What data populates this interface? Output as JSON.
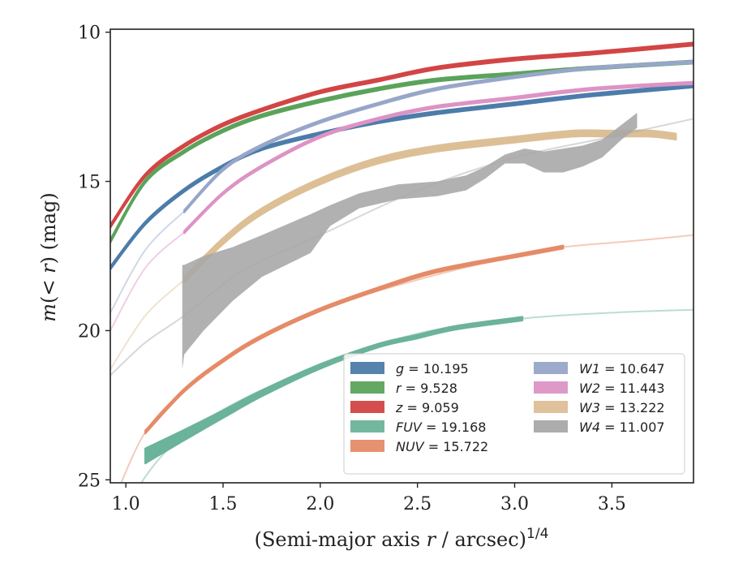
{
  "chart_data": {
    "type": "line",
    "xlabel": "(Semi-major axis r / arcsec)",
    "xlabel_exponent": "1/4",
    "ylabel": "m(< r) (mag)",
    "xlim": [
      0.92,
      3.92
    ],
    "ylim": [
      25.1,
      9.9
    ],
    "y_inverted": true,
    "x_ticks": [
      "1.0",
      "1.5",
      "2.0",
      "2.5",
      "3.0",
      "3.5"
    ],
    "y_ticks": [
      "10",
      "15",
      "20",
      "25"
    ],
    "legend_position": "lower-right",
    "series": [
      {
        "name": "g = 10.195",
        "color": "#4C7CAA",
        "width": 0.1,
        "x": [
          0.92,
          1.1,
          1.3,
          1.5,
          1.7,
          2.0,
          2.3,
          2.6,
          3.0,
          3.4,
          3.92
        ],
        "y": [
          17.9,
          16.4,
          15.3,
          14.5,
          13.9,
          13.4,
          13.0,
          12.7,
          12.4,
          12.1,
          11.8
        ]
      },
      {
        "name": "r = 9.528",
        "color": "#5BA35B",
        "width": 0.1,
        "x": [
          0.92,
          1.1,
          1.3,
          1.5,
          1.7,
          2.0,
          2.3,
          2.6,
          3.0,
          3.4,
          3.92
        ],
        "y": [
          17.0,
          15.0,
          14.0,
          13.3,
          12.8,
          12.3,
          11.9,
          11.6,
          11.4,
          11.2,
          11.0
        ]
      },
      {
        "name": "z = 9.059",
        "color": "#D34545",
        "width": 0.1,
        "x": [
          0.92,
          1.1,
          1.3,
          1.5,
          1.7,
          2.0,
          2.3,
          2.6,
          3.0,
          3.4,
          3.92
        ],
        "y": [
          16.5,
          14.8,
          13.8,
          13.1,
          12.6,
          12.0,
          11.6,
          11.2,
          10.9,
          10.7,
          10.4
        ]
      },
      {
        "name": "FUV = 19.168",
        "color": "#6BB39A",
        "width": 0.2,
        "x": [
          1.1,
          1.3,
          1.5,
          1.7,
          2.0,
          2.3,
          2.5,
          2.7,
          3.04
        ],
        "y": [
          24.2,
          23.5,
          22.8,
          22.1,
          21.2,
          20.5,
          20.2,
          19.9,
          19.6
        ],
        "widths": [
          0.5,
          0.35,
          0.25,
          0.2,
          0.15,
          0.12,
          0.12,
          0.12,
          0.12
        ],
        "faint_x": [
          0.95,
          1.1,
          1.3,
          1.6,
          2.0,
          2.5,
          3.04,
          3.5,
          3.92
        ],
        "faint_y": [
          26.8,
          24.9,
          23.5,
          22.3,
          21.2,
          20.1,
          19.6,
          19.4,
          19.3
        ]
      },
      {
        "name": "NUV = 15.722",
        "color": "#E58B68",
        "width": 0.1,
        "x": [
          1.1,
          1.3,
          1.5,
          1.7,
          2.0,
          2.3,
          2.6,
          3.0,
          3.25
        ],
        "y": [
          23.4,
          22.0,
          21.0,
          20.2,
          19.3,
          18.6,
          18.0,
          17.5,
          17.2
        ],
        "faint_x": [
          0.95,
          1.1,
          1.3,
          1.6,
          2.0,
          2.5,
          3.0,
          3.25,
          3.6,
          3.92
        ],
        "faint_y": [
          25.5,
          23.4,
          22.0,
          20.6,
          19.3,
          18.3,
          17.5,
          17.2,
          17.0,
          16.8
        ]
      },
      {
        "name": "W1 = 10.647",
        "color": "#97A6C9",
        "width": 0.08,
        "x": [
          1.3,
          1.5,
          1.7,
          2.0,
          2.3,
          2.6,
          3.0,
          3.4,
          3.92
        ],
        "y": [
          16.0,
          14.6,
          13.8,
          13.0,
          12.4,
          11.9,
          11.5,
          11.2,
          11.0
        ],
        "faint_x": [
          0.92,
          1.1,
          1.3
        ],
        "faint_y": [
          19.4,
          17.3,
          16.0
        ]
      },
      {
        "name": "W2 = 11.443",
        "color": "#DD93C5",
        "width": 0.08,
        "x": [
          1.3,
          1.5,
          1.7,
          2.0,
          2.3,
          2.6,
          3.0,
          3.4,
          3.92
        ],
        "y": [
          16.7,
          15.4,
          14.5,
          13.5,
          12.9,
          12.5,
          12.2,
          11.9,
          11.7
        ],
        "faint_x": [
          0.92,
          1.1,
          1.3
        ],
        "faint_y": [
          20.0,
          17.9,
          16.7
        ]
      },
      {
        "name": "W3 = 13.222",
        "color": "#DDBF96",
        "width": 0.2,
        "x": [
          1.3,
          1.5,
          1.7,
          2.0,
          2.3,
          2.6,
          3.0,
          3.3,
          3.5,
          3.7,
          3.83
        ],
        "y": [
          18.3,
          17.0,
          16.0,
          15.0,
          14.3,
          13.9,
          13.6,
          13.4,
          13.4,
          13.4,
          13.5
        ],
        "faint_x": [
          0.92,
          1.1,
          1.3
        ],
        "faint_y": [
          21.3,
          19.5,
          18.3
        ]
      },
      {
        "name": "W4 = 11.007",
        "color": "#A8A8A8",
        "band": true,
        "x": [
          1.29,
          1.3,
          1.4,
          1.55,
          1.7,
          1.95,
          2.05,
          2.2,
          2.4,
          2.6,
          2.75,
          2.85,
          2.95,
          3.05,
          3.15,
          3.25,
          3.35,
          3.45,
          3.55,
          3.63
        ],
        "y_upper": [
          17.8,
          17.8,
          17.5,
          17.2,
          16.8,
          16.1,
          15.8,
          15.4,
          15.1,
          15.0,
          14.8,
          14.5,
          14.1,
          13.9,
          14.0,
          13.9,
          13.8,
          13.6,
          13.1,
          12.7
        ],
        "y_lower": [
          21.3,
          20.8,
          20.0,
          19.0,
          18.2,
          17.4,
          16.5,
          15.9,
          15.6,
          15.5,
          15.3,
          14.9,
          14.4,
          14.4,
          14.7,
          14.7,
          14.5,
          14.2,
          13.6,
          13.2
        ],
        "faint_x": [
          0.92,
          1.1,
          1.3,
          1.6,
          2.0,
          2.5,
          3.0,
          3.5,
          3.92
        ],
        "faint_y": [
          21.5,
          20.4,
          19.5,
          18.0,
          16.8,
          15.3,
          14.2,
          13.5,
          12.9
        ]
      }
    ]
  }
}
